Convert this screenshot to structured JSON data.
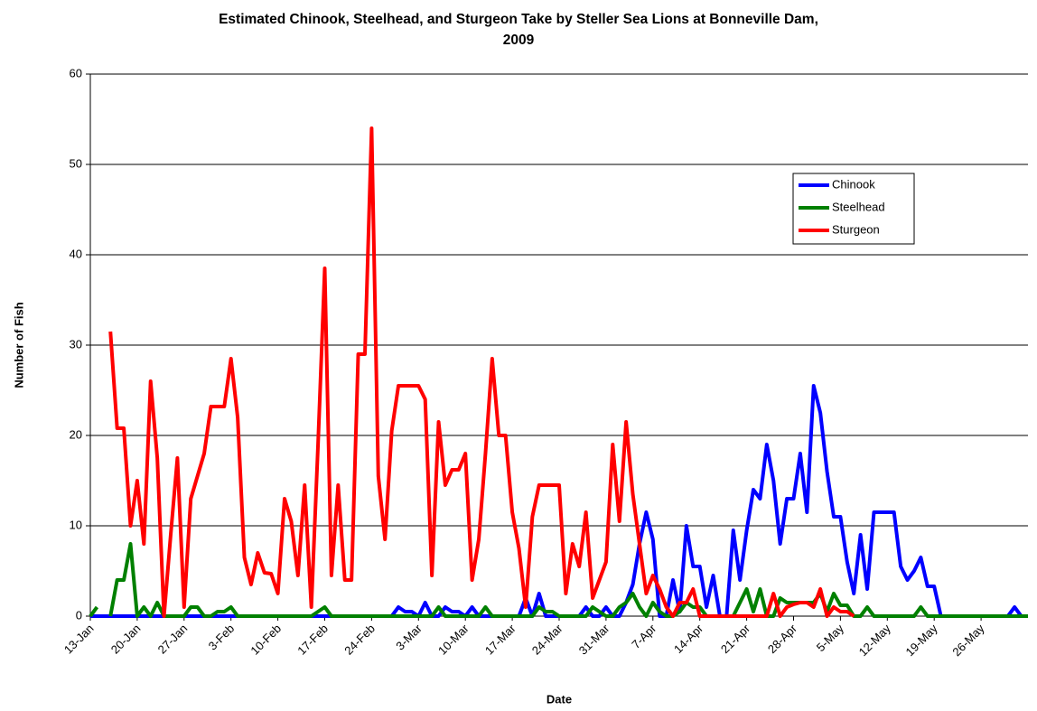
{
  "chart_data": {
    "type": "line",
    "title": "Estimated Chinook, Steelhead, and Sturgeon Take by Steller Sea Lions at Bonneville Dam, 2009",
    "x_label": "Date",
    "y_label": "Number of Fish",
    "categories": [
      "13-Jan",
      null,
      null,
      null,
      null,
      null,
      null,
      "20-Jan",
      null,
      null,
      null,
      null,
      null,
      null,
      "27-Jan",
      null,
      null,
      null,
      null,
      null,
      null,
      "3-Feb",
      null,
      null,
      null,
      null,
      null,
      null,
      "10-Feb",
      null,
      null,
      null,
      null,
      null,
      null,
      "17-Feb",
      null,
      null,
      null,
      null,
      null,
      null,
      "24-Feb",
      null,
      null,
      null,
      null,
      null,
      null,
      "3-Mar",
      null,
      null,
      null,
      null,
      null,
      null,
      "10-Mar",
      null,
      null,
      null,
      null,
      null,
      null,
      "17-Mar",
      null,
      null,
      null,
      null,
      null,
      null,
      "24-Mar",
      null,
      null,
      null,
      null,
      null,
      null,
      "31-Mar",
      null,
      null,
      null,
      null,
      null,
      null,
      "7-Apr",
      null,
      null,
      null,
      null,
      null,
      null,
      "14-Apr",
      null,
      null,
      null,
      null,
      null,
      null,
      "21-Apr",
      null,
      null,
      null,
      null,
      null,
      null,
      "28-Apr",
      null,
      null,
      null,
      null,
      null,
      null,
      "5-May",
      null,
      null,
      null,
      null,
      null,
      null,
      "12-May",
      null,
      null,
      null,
      null,
      null,
      null,
      "19-May",
      null,
      null,
      null,
      null,
      null,
      null,
      "26-May",
      null,
      null,
      null,
      null,
      null,
      null,
      null
    ],
    "series": [
      {
        "name": "Chinook",
        "color": "#0000ff",
        "values": [
          0,
          0,
          0,
          0,
          0,
          0,
          0,
          0,
          0,
          0,
          0,
          0,
          0,
          0,
          0,
          0,
          0,
          0,
          0,
          0,
          0,
          0,
          0,
          0,
          0,
          0,
          0,
          0,
          0,
          0,
          0,
          0,
          0,
          0,
          0,
          0,
          0,
          0,
          0,
          0,
          0,
          0,
          0,
          0,
          0,
          0,
          1,
          0.5,
          0.5,
          0,
          1.5,
          0,
          0,
          1,
          0.5,
          0.5,
          0,
          1,
          0,
          0,
          0,
          0,
          0,
          0,
          0,
          2,
          0,
          2.5,
          0,
          0,
          0,
          0,
          0,
          0,
          1,
          0,
          0,
          1,
          0,
          0,
          1.5,
          3.5,
          8,
          11.5,
          8.5,
          0,
          0,
          4,
          0.5,
          10,
          5.5,
          5.5,
          1,
          4.5,
          0,
          0,
          9.5,
          4,
          9.5,
          14,
          13,
          19,
          15,
          8,
          13,
          13,
          18,
          11.5,
          25.5,
          22.5,
          16,
          11,
          11,
          6,
          2.5,
          9,
          3,
          11.5,
          11.5,
          11.5,
          11.5,
          5.5,
          4,
          5,
          6.5,
          3.3,
          3.3,
          0,
          0,
          0,
          0,
          0,
          0,
          0,
          0,
          0,
          0,
          0,
          1,
          0,
          0
        ]
      },
      {
        "name": "Steelhead",
        "color": "#008000",
        "values": [
          0,
          1,
          null,
          0,
          4,
          4,
          8,
          0,
          1,
          0,
          1.5,
          0,
          0,
          0,
          0,
          1,
          1,
          0,
          0,
          0.5,
          0.5,
          1,
          0,
          0,
          0,
          0,
          0,
          0,
          0,
          0,
          0,
          0,
          0,
          0,
          0.5,
          1,
          0,
          0,
          0,
          0,
          0,
          0,
          0,
          0,
          0,
          0,
          0,
          0,
          0,
          0,
          0,
          0,
          1,
          0,
          0,
          0,
          0,
          0,
          0,
          1,
          0,
          0,
          0,
          0,
          0,
          0,
          0,
          1,
          0.5,
          0.5,
          0,
          0,
          0,
          0,
          0,
          1,
          0.5,
          0,
          0,
          1,
          1.5,
          2.5,
          1,
          0,
          1.5,
          0.5,
          0,
          0,
          0.5,
          1.5,
          1,
          1,
          0,
          0,
          0,
          0,
          0,
          1.5,
          3,
          0.5,
          3,
          0,
          0,
          2,
          1.5,
          1.5,
          1.5,
          1.5,
          1.5,
          2.5,
          0.5,
          2.5,
          1.2,
          1.2,
          0,
          0,
          1,
          0,
          0,
          0,
          0,
          0,
          0,
          0,
          1,
          0,
          0,
          0,
          0,
          0,
          0,
          0,
          0,
          0,
          0,
          0,
          0,
          0,
          0,
          0,
          0
        ]
      },
      {
        "name": "Sturgeon",
        "color": "#ff0000",
        "values": [
          null,
          null,
          null,
          31.5,
          20.8,
          20.8,
          10,
          15,
          8,
          26,
          17.5,
          0,
          9,
          17.5,
          1,
          13,
          15.5,
          18,
          23.2,
          23.2,
          23.2,
          28.5,
          22,
          6.5,
          3.5,
          7,
          4.8,
          4.7,
          2.5,
          13,
          10.5,
          4.5,
          14.5,
          1,
          19,
          38.5,
          4.5,
          14.5,
          4,
          4,
          29,
          29,
          54,
          15.5,
          8.5,
          20.5,
          25.5,
          25.5,
          25.5,
          25.5,
          24,
          4.5,
          21.5,
          14.5,
          16.2,
          16.2,
          18,
          4,
          8.5,
          18,
          28.5,
          20,
          20,
          11.5,
          7.5,
          1,
          11,
          14.5,
          14.5,
          14.5,
          14.5,
          2.5,
          8,
          5.5,
          11.5,
          2,
          4,
          6,
          19,
          10.5,
          21.5,
          13.5,
          8,
          2.5,
          4.5,
          3,
          1,
          0,
          1.5,
          1.5,
          3,
          0,
          0,
          0,
          0,
          0,
          0,
          0,
          0,
          0,
          0,
          0,
          2.5,
          0,
          1,
          1.3,
          1.5,
          1.5,
          1,
          3,
          0,
          1,
          0.5,
          0.5,
          0,
          null,
          null,
          null,
          null,
          null,
          null,
          null,
          null,
          null,
          null,
          null,
          null,
          null,
          null,
          null,
          null,
          null,
          null,
          null,
          null,
          null,
          null,
          null,
          null,
          null,
          null
        ]
      }
    ],
    "ylim": [
      0,
      60
    ],
    "yticks": [
      0,
      10,
      20,
      30,
      40,
      50,
      60
    ],
    "grid": true,
    "legend": "right"
  }
}
